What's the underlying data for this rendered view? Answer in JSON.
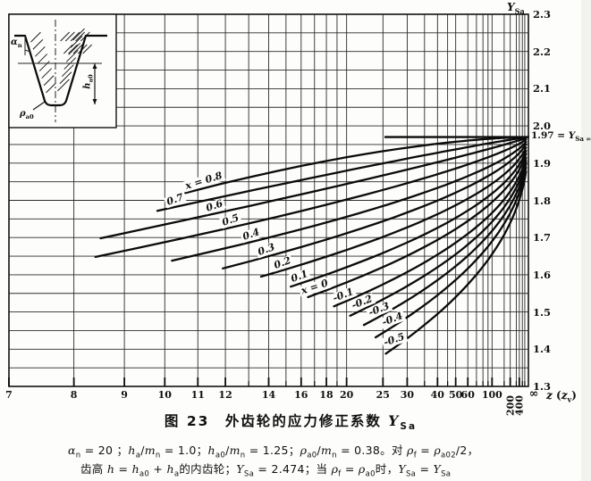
{
  "figure": {
    "caption": "图  23　外齿轮的应力修正系数 *Y*_{Sa}",
    "notes": [
      "*α*_{n} = 20 ；*h*_{a}/*m*_{n} = 1.0；*h*_{a0}/*m*_{n} = 1.25；*ρ*_{a0}/*m*_{n} = 0.38。对 *ρ*_{f} = *ρ*_{a02}/2，",
      "齿高 *h* = *h*_{a0} + *h*_{a}的内齿轮；*Y*_{Sa} = 2.474；当 *ρ*_{f} = *ρ*_{a0}时，*Y*_{Sa} = *Y*_{Sa}"
    ]
  },
  "inset": {
    "labels": {
      "pressure_angle": "*α*_{n}",
      "addendum": "*h*_{a0}",
      "tip_radius": "*ρ*_{a0}"
    }
  },
  "chart_data": {
    "type": "line",
    "title": "外齿轮的应力修正系数 Y_Sa (图 23)",
    "xlabel": "*z* (*z*_{v})",
    "x_end_label": "∞",
    "ylabel": "*Y*_{Sa}",
    "x_scale": "reciprocal: position linear in 1/z, z = 7 at left edge, ∞ at right edge",
    "ylim": [
      1.3,
      2.3
    ],
    "y_grid_step": 0.05,
    "grid": true,
    "y_ticks": [
      "2.3",
      "2.2",
      "2.1",
      "2.0",
      "1.9",
      "1.8",
      "1.7",
      "1.6",
      "1.5",
      "1.4",
      "1.3"
    ],
    "y_tick_values": [
      2.3,
      2.2,
      2.1,
      2.0,
      1.9,
      1.8,
      1.7,
      1.6,
      1.5,
      1.4,
      1.3
    ],
    "x_ticks_labeled": [
      7,
      8,
      9,
      10,
      11,
      12,
      14,
      16,
      18,
      20,
      25,
      30,
      40,
      50,
      60,
      100
    ],
    "x_ticks_rotated": [
      200,
      400
    ],
    "x_gridlines_z": [
      7,
      8,
      9,
      10,
      11,
      12,
      13,
      14,
      15,
      16,
      17,
      18,
      19,
      20,
      25,
      30,
      35,
      40,
      45,
      50,
      60,
      70,
      80,
      90,
      100,
      150,
      200,
      300,
      400,
      600,
      1000
    ],
    "asymptote": {
      "value": 1.97,
      "label": "1.97 = *Y*_{Sa ∞}"
    },
    "series_model": "Y(z) = 1.97 - (1.97 - y_start) * (z_start/z)^q  for z >= z_start (all curves converge to Y_Sa∞ = 1.97 at z = ∞)",
    "series": [
      {
        "label": "*x* = 0.8",
        "x_shift": 0.8,
        "z_start": 10.6,
        "y_start": 1.82,
        "q": 1.6,
        "label_z": 11.2,
        "angle": -17
      },
      {
        "label": "0.7",
        "x_shift": 0.7,
        "z_start": 9.8,
        "y_start": 1.772,
        "q": 1.1,
        "label_z": 10.3,
        "angle": -19
      },
      {
        "label": "0.6",
        "x_shift": 0.6,
        "z_start": 8.5,
        "y_start": 1.698,
        "q": 0.9,
        "label_z": 11.6,
        "angle": -19
      },
      {
        "label": "0.5",
        "x_shift": 0.5,
        "z_start": 8.4,
        "y_start": 1.648,
        "q": 0.75,
        "label_z": 12.2,
        "angle": -19
      },
      {
        "label": "0.4",
        "x_shift": 0.4,
        "z_start": 10.2,
        "y_start": 1.638,
        "q": 0.65,
        "label_z": 13.1,
        "angle": -19
      },
      {
        "label": "0.3",
        "x_shift": 0.3,
        "z_start": 11.9,
        "y_start": 1.617,
        "q": 0.6,
        "label_z": 13.9,
        "angle": -20
      },
      {
        "label": "0.2",
        "x_shift": 0.2,
        "z_start": 13.6,
        "y_start": 1.595,
        "q": 0.55,
        "label_z": 14.8,
        "angle": -20
      },
      {
        "label": "0.1",
        "x_shift": 0.1,
        "z_start": 15.3,
        "y_start": 1.568,
        "q": 0.52,
        "label_z": 15.9,
        "angle": -20
      },
      {
        "label": "*x* = 0",
        "x_shift": 0.0,
        "z_start": 16.5,
        "y_start": 1.54,
        "q": 0.5,
        "label_z": 17.0,
        "angle": -18
      },
      {
        "label": "-0.1",
        "x_shift": -0.1,
        "z_start": 18.7,
        "y_start": 1.515,
        "q": 0.48,
        "label_z": 19.6,
        "angle": -21
      },
      {
        "label": "-0.2",
        "x_shift": -0.2,
        "z_start": 20.4,
        "y_start": 1.49,
        "q": 0.47,
        "label_z": 21.9,
        "angle": -21
      },
      {
        "label": "-0.3",
        "x_shift": -0.3,
        "z_start": 22.1,
        "y_start": 1.465,
        "q": 0.46,
        "label_z": 24.4,
        "angle": -21
      },
      {
        "label": "-0.4",
        "x_shift": -0.4,
        "z_start": 23.8,
        "y_start": 1.432,
        "q": 0.455,
        "label_z": 26.8,
        "angle": -21
      },
      {
        "label": "-0.5",
        "x_shift": -0.5,
        "z_start": 25.5,
        "y_start": 1.388,
        "q": 0.45,
        "label_z": 27.2,
        "angle": -18
      }
    ]
  }
}
